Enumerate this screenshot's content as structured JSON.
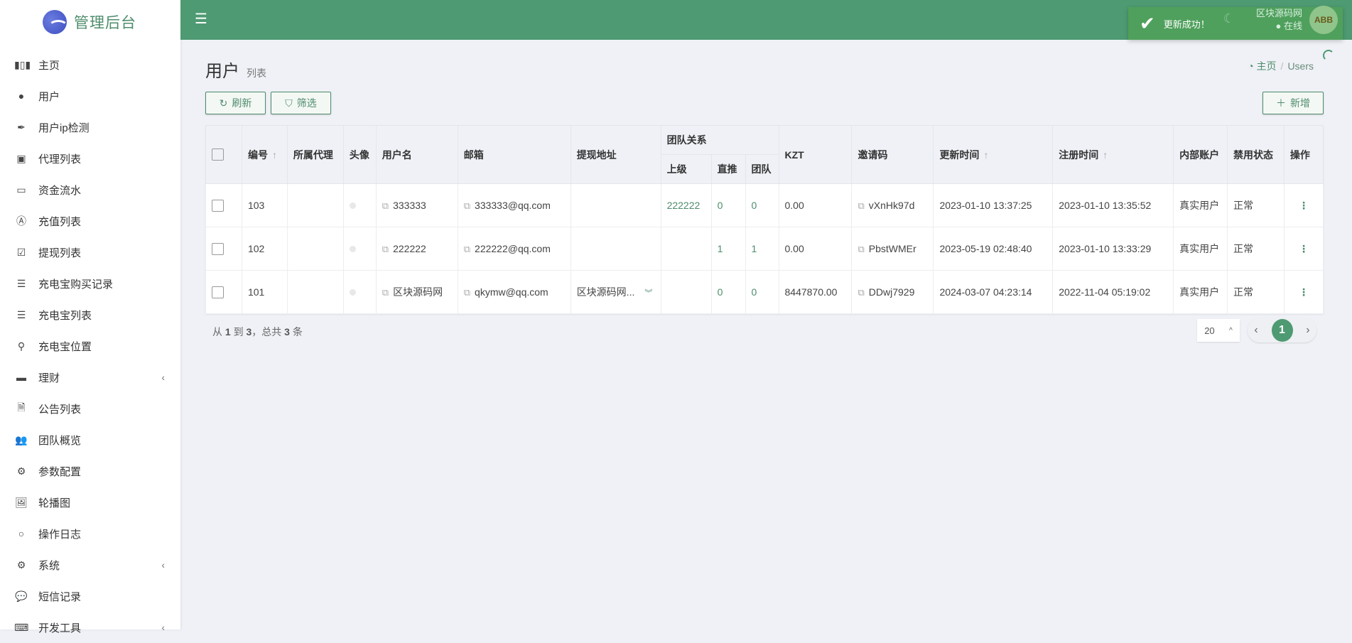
{
  "brand": {
    "title": "管理后台"
  },
  "sidebar": {
    "items": [
      {
        "label": "主页",
        "icon": "bar-chart-icon",
        "glyph": "▮▯▮"
      },
      {
        "label": "用户",
        "icon": "user-icon",
        "glyph": "●"
      },
      {
        "label": "用户ip检测",
        "icon": "feather-icon",
        "glyph": "✒"
      },
      {
        "label": "代理列表",
        "icon": "contact-card-icon",
        "glyph": "▣"
      },
      {
        "label": "资金流水",
        "icon": "money-icon",
        "glyph": "▭"
      },
      {
        "label": "充值列表",
        "icon": "letter-a-icon",
        "glyph": "Ⓐ"
      },
      {
        "label": "提现列表",
        "icon": "check-square-icon",
        "glyph": "☑"
      },
      {
        "label": "充电宝购买记录",
        "icon": "list-icon",
        "glyph": "☰"
      },
      {
        "label": "充电宝列表",
        "icon": "indent-list-icon",
        "glyph": "☰"
      },
      {
        "label": "充电宝位置",
        "icon": "map-marker-icon",
        "glyph": "⚲"
      },
      {
        "label": "理财",
        "icon": "archive-icon",
        "glyph": "▬",
        "arrow": "‹"
      },
      {
        "label": "公告列表",
        "icon": "file-text-icon",
        "glyph": "🗎"
      },
      {
        "label": "团队概览",
        "icon": "users-icon",
        "glyph": "👥"
      },
      {
        "label": "参数配置",
        "icon": "gears-icon",
        "glyph": "⚙"
      },
      {
        "label": "轮播图",
        "icon": "image-icon",
        "glyph": "🖼"
      },
      {
        "label": "操作日志",
        "icon": "circle-icon",
        "glyph": "○"
      },
      {
        "label": "系统",
        "icon": "gear-icon",
        "glyph": "⚙",
        "arrow": "‹"
      },
      {
        "label": "短信记录",
        "icon": "comment-icon",
        "glyph": "💬"
      },
      {
        "label": "开发工具",
        "icon": "keyboard-icon",
        "glyph": "⌨",
        "arrow": "‹"
      }
    ]
  },
  "header": {
    "user_name": "区块源码网",
    "status": "● 在线",
    "avatar_text": "ABB"
  },
  "toast": {
    "message": "更新成功！"
  },
  "page": {
    "title": "用户",
    "subtitle": "列表",
    "breadcrumb_home": "主页",
    "breadcrumb_current": "Users"
  },
  "toolbar": {
    "refresh": "刷新",
    "filter": "筛选",
    "add": "新增"
  },
  "table": {
    "headers": {
      "id": "编号",
      "agent": "所属代理",
      "avatar": "头像",
      "username": "用户名",
      "email": "邮箱",
      "withdraw": "提现地址",
      "team": "团队关系",
      "parent": "上级",
      "direct": "直推",
      "team_count": "团队",
      "kzt": "KZT",
      "invite": "邀请码",
      "updated": "更新时间",
      "registered": "注册时间",
      "internal": "内部账户",
      "ban": "禁用状态",
      "ops": "操作"
    },
    "rows": [
      {
        "id": "103",
        "agent": "",
        "username": "333333",
        "email": "333333@qq.com",
        "withdraw": "",
        "parent": "222222",
        "direct": "0",
        "team": "0",
        "kzt": "0.00",
        "invite": "vXnHk97d",
        "updated": "2023-01-10 13:37:25",
        "registered": "2023-01-10 13:35:52",
        "internal": "真实用户",
        "ban": "正常"
      },
      {
        "id": "102",
        "agent": "",
        "username": "222222",
        "email": "222222@qq.com",
        "withdraw": "",
        "parent": "",
        "direct": "1",
        "team": "1",
        "kzt": "0.00",
        "invite": "PbstWMEr",
        "updated": "2023-05-19 02:48:40",
        "registered": "2023-01-10 13:33:29",
        "internal": "真实用户",
        "ban": "正常"
      },
      {
        "id": "101",
        "agent": "",
        "username": "区块源码网",
        "email": "qkymw@qq.com",
        "withdraw": "区块源码网...",
        "parent": "",
        "direct": "0",
        "team": "0",
        "kzt": "8447870.00",
        "invite": "DDwj7929",
        "updated": "2024-03-07 04:23:14",
        "registered": "2022-11-04 05:19:02",
        "internal": "真实用户",
        "ban": "正常"
      }
    ]
  },
  "footer": {
    "pre": "从",
    "from": "1",
    "to_word": "到",
    "to": "3",
    "mid": "，总共",
    "total": "3",
    "post": "条"
  },
  "pagination": {
    "page_size": "20",
    "current_page": "1"
  }
}
